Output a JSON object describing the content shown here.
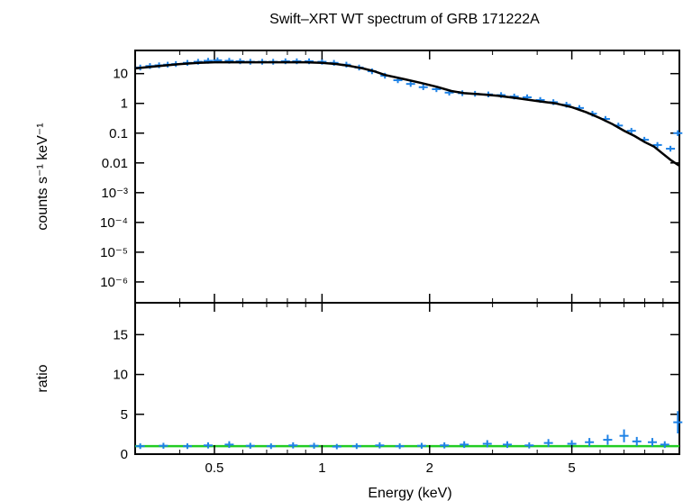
{
  "chart_data": {
    "type": "scatter",
    "title": "Swift–XRT WT spectrum of GRB 171222A",
    "xlabel": "Energy (keV)",
    "xscale": "log",
    "xlim": [
      0.3,
      10
    ],
    "xticks": [
      {
        "value": 0.5,
        "label": "0.5"
      },
      {
        "value": 1,
        "label": "1"
      },
      {
        "value": 2,
        "label": "2"
      },
      {
        "value": 5,
        "label": "5"
      }
    ],
    "panels": [
      {
        "name": "spectrum",
        "ylabel": "counts s⁻¹ keV⁻¹",
        "yscale": "log",
        "ylim": [
          2e-07,
          60
        ],
        "yticks": [
          {
            "value": 10,
            "label": "10"
          },
          {
            "value": 1,
            "label": "1"
          },
          {
            "value": 0.1,
            "label": "0.1"
          },
          {
            "value": 0.01,
            "label": "0.01"
          },
          {
            "value": 0.001,
            "label": "10⁻³"
          },
          {
            "value": 0.0001,
            "label": "10⁻⁴"
          },
          {
            "value": 1e-05,
            "label": "10⁻⁵"
          },
          {
            "value": 1e-06,
            "label": "10⁻⁶"
          }
        ],
        "data_color": "#1e82e6",
        "model_color": "#000000",
        "data_x": [
          0.31,
          0.33,
          0.35,
          0.37,
          0.39,
          0.42,
          0.45,
          0.48,
          0.51,
          0.55,
          0.59,
          0.63,
          0.68,
          0.73,
          0.79,
          0.85,
          0.92,
          1.0,
          1.08,
          1.17,
          1.27,
          1.38,
          1.5,
          1.63,
          1.77,
          1.92,
          2.09,
          2.27,
          2.47,
          2.68,
          2.92,
          3.17,
          3.45,
          3.75,
          4.08,
          4.44,
          4.83,
          5.25,
          5.71,
          6.21,
          6.75,
          7.34,
          7.98,
          8.68,
          9.44,
          9.9
        ],
        "data_y": [
          16,
          18,
          19,
          20,
          21,
          23,
          25,
          27,
          28,
          27,
          26,
          25,
          25,
          25,
          26,
          26,
          26,
          25,
          23,
          20,
          16,
          12,
          8.5,
          6,
          4.5,
          3.5,
          3,
          2.3,
          2.2,
          2.1,
          2.0,
          1.9,
          1.7,
          1.6,
          1.3,
          1.1,
          0.9,
          0.7,
          0.45,
          0.3,
          0.18,
          0.12,
          0.06,
          0.04,
          0.03,
          0.1
        ],
        "model_x": [
          0.3,
          0.35,
          0.4,
          0.45,
          0.5,
          0.6,
          0.7,
          0.8,
          0.9,
          1.0,
          1.1,
          1.2,
          1.3,
          1.4,
          1.5,
          1.7,
          1.9,
          2.1,
          2.3,
          2.5,
          2.8,
          3.1,
          3.5,
          4.0,
          4.5,
          5.0,
          5.5,
          6.0,
          6.5,
          7.0,
          7.5,
          8.0,
          8.5,
          9.0,
          9.5,
          10.0
        ],
        "model_y": [
          15,
          18,
          21,
          23,
          24,
          24,
          24,
          24,
          24,
          23,
          21,
          18,
          15,
          12,
          9,
          6.5,
          4.8,
          3.6,
          2.6,
          2.2,
          2.0,
          1.8,
          1.5,
          1.2,
          1.0,
          0.75,
          0.5,
          0.32,
          0.2,
          0.12,
          0.08,
          0.05,
          0.035,
          0.02,
          0.012,
          0.008
        ]
      },
      {
        "name": "ratio",
        "ylabel": "ratio",
        "yscale": "linear",
        "ylim": [
          0,
          19
        ],
        "yticks": [
          {
            "value": 0,
            "label": "0"
          },
          {
            "value": 5,
            "label": "5"
          },
          {
            "value": 10,
            "label": "10"
          },
          {
            "value": 15,
            "label": "15"
          }
        ],
        "reference_value": 1,
        "reference_color": "#22cc22",
        "data_color": "#1e82e6",
        "data_x": [
          0.31,
          0.36,
          0.42,
          0.48,
          0.55,
          0.63,
          0.72,
          0.83,
          0.95,
          1.1,
          1.25,
          1.45,
          1.65,
          1.9,
          2.2,
          2.5,
          2.9,
          3.3,
          3.8,
          4.3,
          5.0,
          5.6,
          6.3,
          7.0,
          7.6,
          8.4,
          9.1,
          9.9
        ],
        "data_y": [
          1.0,
          1.05,
          1.0,
          1.1,
          1.2,
          1.05,
          1.0,
          1.1,
          1.05,
          0.95,
          1.0,
          1.1,
          1.0,
          1.05,
          1.1,
          1.2,
          1.3,
          1.2,
          1.1,
          1.4,
          1.3,
          1.5,
          1.8,
          2.3,
          1.6,
          1.5,
          1.2,
          4.0
        ]
      }
    ]
  }
}
